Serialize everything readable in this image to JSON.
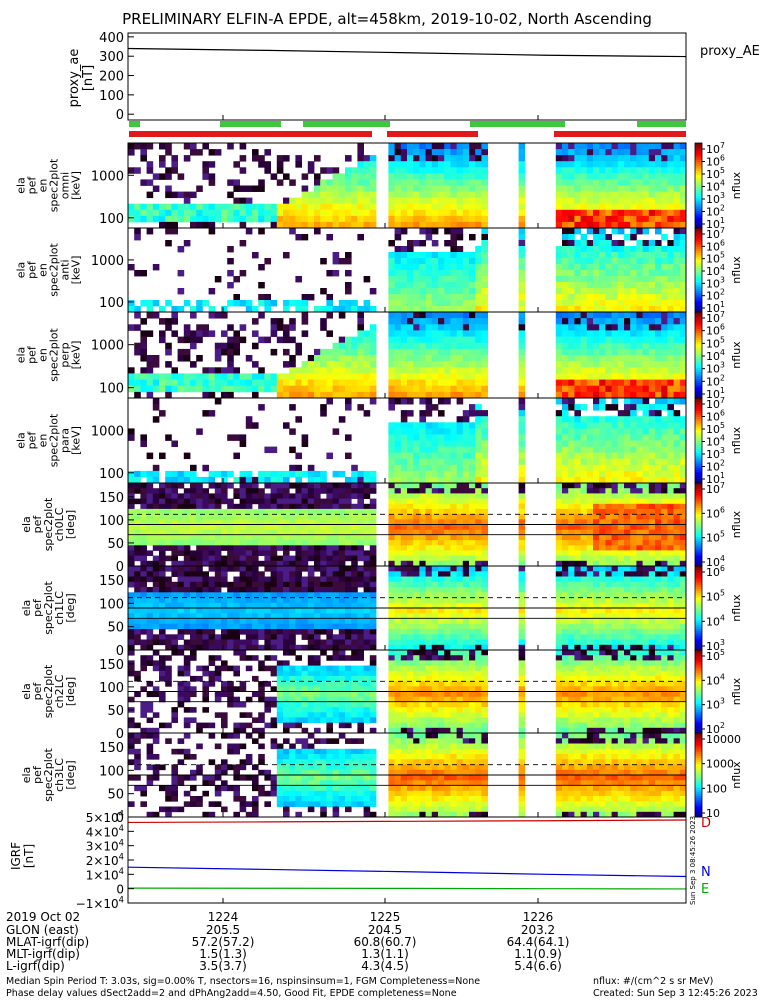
{
  "chart_data": {
    "type": "heatmap",
    "title": "PRELIMINARY ELFIN-A EPDE, alt=458km, 2019-10-02, North Ascending",
    "x_axis": {
      "date_label": "2019 Oct 02",
      "ticks": [
        "1224",
        "1225",
        "1226"
      ],
      "rows": [
        {
          "label": "GLON (east)",
          "values": [
            "205.5",
            "204.5",
            "203.2"
          ]
        },
        {
          "label": "MLAT-igrf(dip)",
          "values": [
            "57.2(57.2)",
            "60.8(60.7)",
            "64.4(64.1)"
          ]
        },
        {
          "label": "MLT-igrf(dip)",
          "values": [
            "1.5(1.3)",
            "1.3(1.1)",
            "1.1(0.9)"
          ]
        },
        {
          "label": "L-igrf(dip)",
          "values": [
            "3.5(3.7)",
            "4.3(4.5)",
            "5.4(6.6)"
          ]
        }
      ]
    },
    "panels": [
      {
        "id": "proxy_ae",
        "type": "line",
        "ylabel": [
          "proxy_ae",
          "[nT]"
        ],
        "yticks": [
          "400",
          "300",
          "200",
          "100",
          "0"
        ],
        "ylim": [
          -30,
          420
        ],
        "legend": "proxy_AE",
        "series": [
          {
            "color": "#000000",
            "values": [
              340,
              330,
              318,
              305,
              298
            ]
          }
        ]
      },
      {
        "id": "en-omni",
        "type": "heatmap",
        "ylabel": [
          "ela",
          "pef",
          "en",
          "spec2plot",
          "omni",
          "[keV]"
        ],
        "yticks": [
          "1000",
          "100"
        ],
        "cbar_label": "nflux",
        "cbar_ticks": [
          "10^7",
          "10^6",
          "10^5",
          "10^4",
          "10^3",
          "10^2",
          "10^1"
        ]
      },
      {
        "id": "en-anti",
        "type": "heatmap",
        "ylabel": [
          "ela",
          "pef",
          "en",
          "spec2plot",
          "anti",
          "[keV]"
        ],
        "yticks": [
          "1000",
          "100"
        ],
        "cbar_label": "nflux",
        "cbar_ticks": [
          "10^7",
          "10^6",
          "10^5",
          "10^4",
          "10^3",
          "10^2",
          "10^1"
        ]
      },
      {
        "id": "en-perp",
        "type": "heatmap",
        "ylabel": [
          "ela",
          "pef",
          "en",
          "spec2plot",
          "perp",
          "[keV]"
        ],
        "yticks": [
          "1000",
          "100"
        ],
        "cbar_label": "nflux",
        "cbar_ticks": [
          "10^7",
          "10^6",
          "10^5",
          "10^4",
          "10^3",
          "10^2",
          "10^1"
        ]
      },
      {
        "id": "en-para",
        "type": "heatmap",
        "ylabel": [
          "ela",
          "pef",
          "en",
          "spec2plot",
          "para",
          "[keV]"
        ],
        "yticks": [
          "1000",
          "100"
        ],
        "cbar_label": "nflux",
        "cbar_ticks": [
          "10^7",
          "10^6",
          "10^5",
          "10^4",
          "10^3",
          "10^2",
          "10^1"
        ]
      },
      {
        "id": "ch0LC",
        "type": "heatmap",
        "ylabel": [
          "ela",
          "pef",
          "spec2plot",
          "ch0LC",
          "[deg]"
        ],
        "yticks": [
          "150",
          "100",
          "50",
          "0"
        ],
        "cbar_label": "nflux",
        "cbar_ticks": [
          "10^7",
          "10^6",
          "10^5",
          "10^4"
        ]
      },
      {
        "id": "ch1LC",
        "type": "heatmap",
        "ylabel": [
          "ela",
          "pef",
          "spec2plot",
          "ch1LC",
          "[deg]"
        ],
        "yticks": [
          "150",
          "100",
          "50",
          "0"
        ],
        "cbar_label": "nflux",
        "cbar_ticks": [
          "10^6",
          "10^5",
          "10^4",
          "10^3"
        ]
      },
      {
        "id": "ch2LC",
        "type": "heatmap",
        "ylabel": [
          "ela",
          "pef",
          "spec2plot",
          "ch2LC",
          "[deg]"
        ],
        "yticks": [
          "150",
          "100",
          "50",
          "0"
        ],
        "cbar_label": "nflux",
        "cbar_ticks": [
          "10^5",
          "10^4",
          "10^3",
          "10^2"
        ]
      },
      {
        "id": "ch3LC",
        "type": "heatmap",
        "ylabel": [
          "ela",
          "pef",
          "spec2plot",
          "ch3LC",
          "[deg]"
        ],
        "yticks": [
          "150",
          "100",
          "50",
          "0"
        ],
        "cbar_label": "nflux",
        "cbar_ticks": [
          "10000",
          "1000",
          "100",
          "10"
        ]
      },
      {
        "id": "igrf",
        "type": "line",
        "ylabel": [
          "IGRF",
          "[nT]"
        ],
        "yticks": [
          "5×10^4",
          "4×10^4",
          "3×10^4",
          "2×10^4",
          "1×10^4",
          "0",
          "−1×10^4"
        ],
        "ylim": [
          -10000,
          50000
        ],
        "legend": [
          "D",
          "N",
          "E"
        ],
        "series": [
          {
            "name": "D",
            "color": "#cc0000",
            "values": [
              46200,
              46600,
              47000,
              47400,
              47900
            ]
          },
          {
            "name": "N",
            "color": "#0000dd",
            "values": [
              15000,
              13400,
              11800,
              10000,
              8500
            ]
          },
          {
            "name": "E",
            "color": "#00aa00",
            "values": [
              400,
              300,
              200,
              0,
              -200
            ]
          }
        ]
      }
    ]
  },
  "footer": {
    "left1": "Median Spin Period T: 3.03s, sig=0.00% T, nsectors=16, nspinsinsum=1, FGM Completeness=None",
    "left2": "Phase delay values dSect2add=2 and dPhAng2add=4.50, Good Fit, EPDE completeness=None",
    "right1": "nflux: #/(cm^2 s sr MeV)",
    "right2": "Created: Sun Sep  3 12:45:26 2023"
  },
  "side_stamp": "Sun Sep  3 08:45:26 2023"
}
